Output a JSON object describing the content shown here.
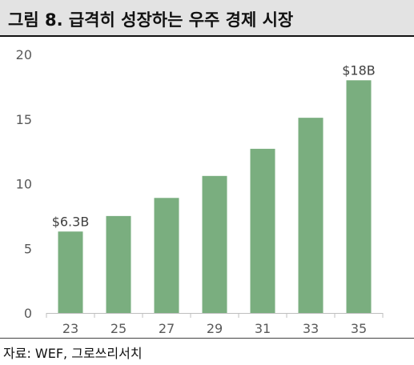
{
  "title": "그림 8. 급격히 성장하는 우주 경제 시장",
  "source": "자료: WEF, 그로쓰리서치",
  "colors": {
    "bar": "#7aae7f",
    "axis": "#bfbfbf",
    "title_bg": "#e3e3e3"
  },
  "chart_data": {
    "type": "bar",
    "categories": [
      "23",
      "25",
      "27",
      "29",
      "31",
      "33",
      "35"
    ],
    "values": [
      6.3,
      7.5,
      8.9,
      10.6,
      12.7,
      15.1,
      18.0
    ],
    "ylim": [
      0,
      20
    ],
    "yticks": [
      0,
      5,
      10,
      15,
      20
    ],
    "grid": false,
    "data_labels": [
      {
        "index": 0,
        "text": "$6.3B"
      },
      {
        "index": 6,
        "text": "$18B"
      }
    ]
  }
}
